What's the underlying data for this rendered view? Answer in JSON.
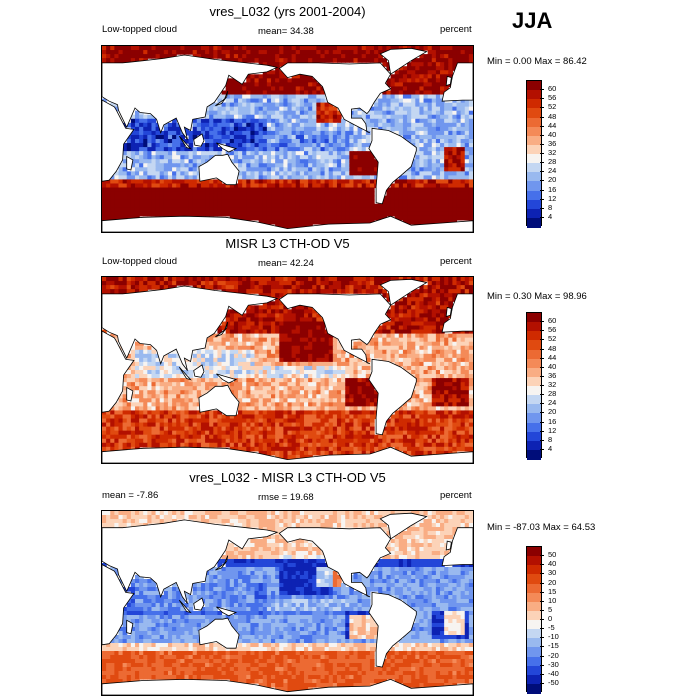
{
  "season_label": "JJA",
  "chart_data": [
    {
      "type": "heatmap",
      "title": "vres_L032 (yrs 2001-2004)",
      "left_label": "Low-topped cloud",
      "center_label": "mean=  34.38",
      "units": "percent",
      "minmax_label": "Min =   0.00 Max =  86.42",
      "mean": 34.38,
      "min": 0.0,
      "max": 86.42,
      "levels": [
        "60",
        "56",
        "52",
        "48",
        "44",
        "40",
        "36",
        "32",
        "28",
        "24",
        "20",
        "16",
        "12",
        "8",
        "4"
      ],
      "colors": [
        "#8b0000",
        "#b31000",
        "#cf2a00",
        "#e04a10",
        "#ec6a33",
        "#f48a58",
        "#f9ad84",
        "#fcd3b8",
        "#f7f4f1",
        "#c4d7f2",
        "#99b9ef",
        "#7096ee",
        "#4670ea",
        "#2346d8",
        "#0d22b3",
        "#000d7a"
      ]
    },
    {
      "type": "heatmap",
      "title": "MISR L3 CTH-OD V5",
      "left_label": "Low-topped cloud",
      "center_label": "mean=  42.24",
      "units": "percent",
      "minmax_label": "Min =   0.30 Max =  98.96",
      "mean": 42.24,
      "min": 0.3,
      "max": 98.96,
      "levels": [
        "60",
        "56",
        "52",
        "48",
        "44",
        "40",
        "36",
        "32",
        "28",
        "24",
        "20",
        "16",
        "12",
        "8",
        "4"
      ],
      "colors": [
        "#8b0000",
        "#b31000",
        "#cf2a00",
        "#e04a10",
        "#ec6a33",
        "#f48a58",
        "#f9ad84",
        "#fcd3b8",
        "#f7f4f1",
        "#c4d7f2",
        "#99b9ef",
        "#7096ee",
        "#4670ea",
        "#2346d8",
        "#0d22b3",
        "#000d7a"
      ]
    },
    {
      "type": "heatmap",
      "title": "vres_L032 - MISR L3 CTH-OD V5",
      "left_label": "mean =  -7.86",
      "center_label": "rmse =  19.68",
      "units": "percent",
      "minmax_label": "Min = -87.03 Max =  64.53",
      "mean": -7.86,
      "rmse": 19.68,
      "min": -87.03,
      "max": 64.53,
      "levels": [
        "50",
        "40",
        "30",
        "20",
        "15",
        "10",
        "5",
        "0",
        "-5",
        "-10",
        "-15",
        "-20",
        "-30",
        "-40",
        "-50"
      ],
      "colors": [
        "#8b0000",
        "#b31000",
        "#cf2a00",
        "#e04a10",
        "#ec6a33",
        "#f48a58",
        "#f9ad84",
        "#fcd3b8",
        "#f7f4f1",
        "#c4d7f2",
        "#99b9ef",
        "#7096ee",
        "#4670ea",
        "#2346d8",
        "#0d22b3",
        "#000d7a"
      ]
    }
  ]
}
